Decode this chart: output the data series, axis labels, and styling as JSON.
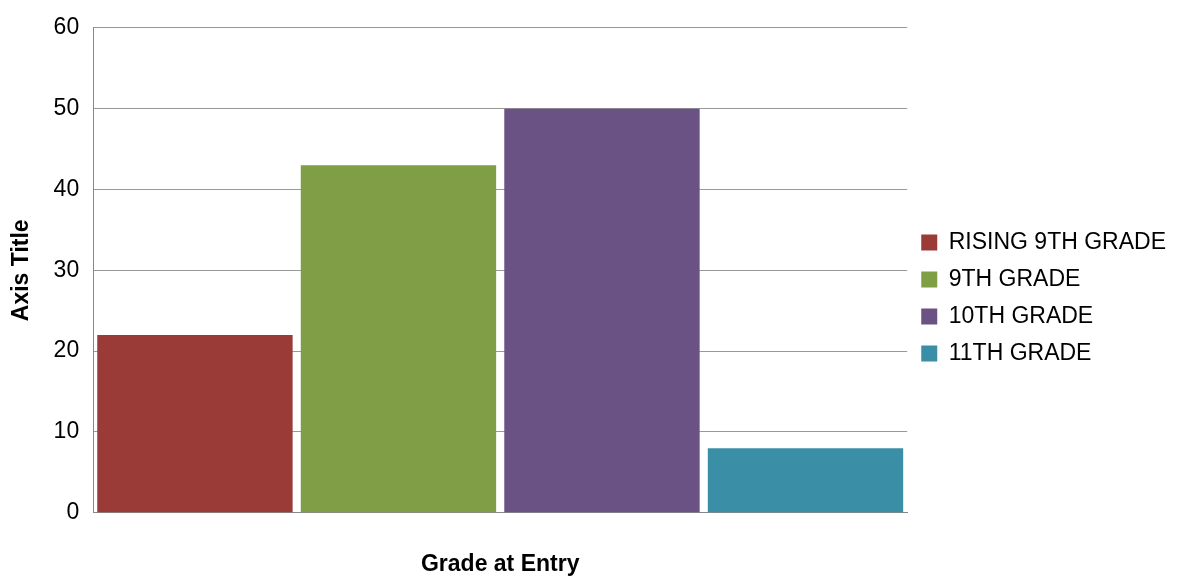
{
  "chart_data": {
    "type": "bar",
    "xlabel": "Grade at Entry",
    "ylabel": "Axis Title",
    "categories": [
      null
    ],
    "series": [
      {
        "name": "RISING 9TH GRADE",
        "color": "#9b3b38",
        "values": [
          22
        ]
      },
      {
        "name": "9TH GRADE",
        "color": "#7f9e45",
        "values": [
          43
        ]
      },
      {
        "name": "10TH GRADE",
        "color": "#6a5284",
        "values": [
          50
        ]
      },
      {
        "name": "11TH GRADE",
        "color": "#3a8fa6",
        "values": [
          8
        ]
      }
    ],
    "ylim": [
      0,
      60
    ],
    "yticks": [
      0,
      10,
      20,
      30,
      40,
      50,
      60
    ],
    "grid": "y",
    "legend": "right"
  }
}
